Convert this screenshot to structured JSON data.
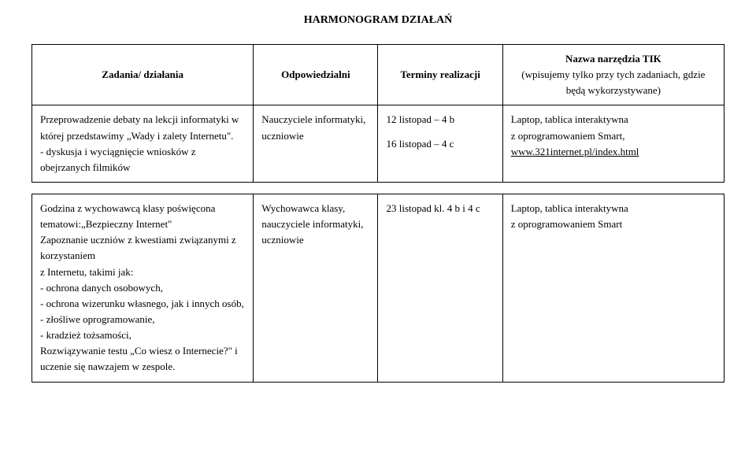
{
  "title": "HARMONOGRAM  DZIAŁAŃ",
  "headers": {
    "tasks": "Zadania/ działania",
    "responsible": "Odpowiedzialni",
    "terms": "Terminy realizacji",
    "tool_line1": "Nazwa narzędzia TIK",
    "tool_line2": "(wpisujemy tylko przy tych zadaniach, gdzie będą wykorzystywane)"
  },
  "rows": [
    {
      "tasks": "Przeprowadzenie debaty  na lekcji informatyki w której przedstawimy „Wady i zalety Internetu\".\n - dyskusja i wyciągnięcie wniosków z obejrzanych filmików",
      "responsible": "Nauczyciele informatyki, uczniowie",
      "terms_line1": "12 listopad – 4 b",
      "terms_line2": "16 listopad – 4 c",
      "tool_text": "Laptop, tablica interaktywna\n z oprogramowaniem Smart,",
      "tool_link": "www.321internet.pl/index.html"
    },
    {
      "tasks": "Godzina z wychowawcą klasy poświęcona tematowi:„Bezpieczny Internet\"\nZapoznanie uczniów z kwestiami związanymi z  korzystaniem\n z Internetu, takimi jak:\n- ochrona danych osobowych,\n- ochrona wizerunku własnego, jak i innych osób,\n-  złośliwe oprogramowanie,\n-  kradzież tożsamości,\nRozwiązywanie testu „Co wiesz o Internecie?\" i uczenie się nawzajem w zespole.",
      "responsible": "Wychowawca klasy, nauczyciele informatyki, uczniowie",
      "terms_line1": "23 listopad kl. 4 b i 4 c",
      "terms_line2": "",
      "tool_text": "Laptop, tablica interaktywna\n z oprogramowaniem Smart",
      "tool_link": ""
    }
  ]
}
